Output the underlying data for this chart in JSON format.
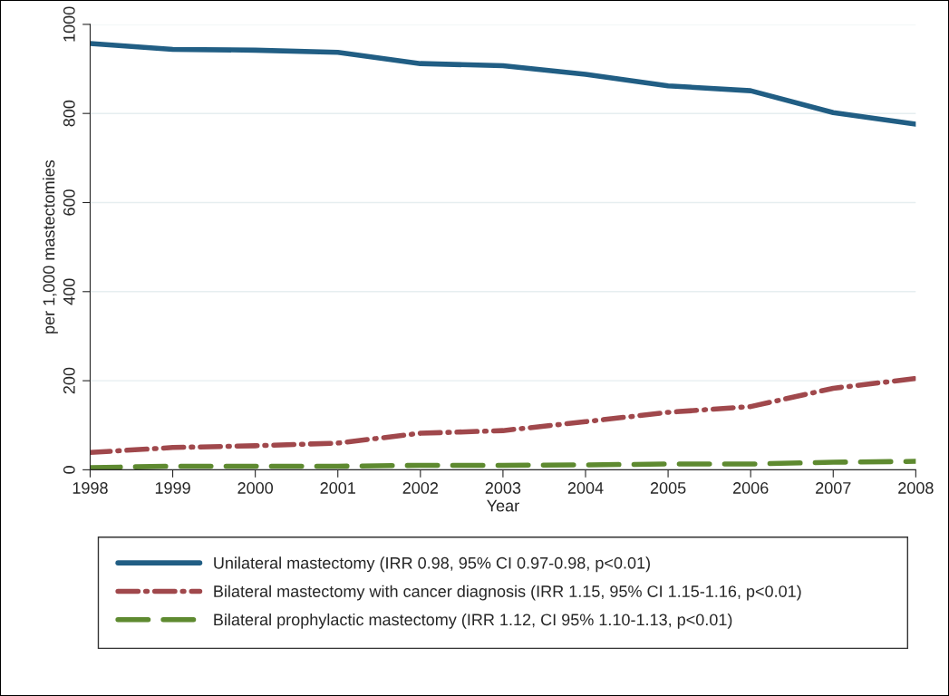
{
  "chart_data": {
    "type": "line",
    "xlabel": "Year",
    "ylabel": "per 1,000 mastectomies",
    "x": [
      1998,
      1999,
      2000,
      2001,
      2002,
      2003,
      2004,
      2005,
      2006,
      2007,
      2008
    ],
    "xlim": [
      1998,
      2008
    ],
    "xticks": [
      1998,
      1999,
      2000,
      2001,
      2002,
      2003,
      2004,
      2005,
      2006,
      2007,
      2008
    ],
    "ylim": [
      0,
      1000
    ],
    "yticks": [
      0,
      200,
      400,
      600,
      800,
      1000
    ],
    "grid": "y",
    "legend": "bottom",
    "series": [
      {
        "name": "Unilateral mastectomy (IRR 0.98, 95% CI 0.97-0.98, p<0.01)",
        "color": "#215e84",
        "line_style": "solid",
        "values": [
          957,
          944,
          942,
          937,
          912,
          907,
          888,
          862,
          851,
          802,
          776
        ]
      },
      {
        "name": "Bilateral mastectomy with cancer diagnosis (IRR 1.15, 95% CI 1.15-1.16, p<0.01)",
        "color": "#a0484c",
        "line_style": "dashdot",
        "values": [
          39,
          50,
          54,
          60,
          82,
          88,
          108,
          129,
          142,
          183,
          205
        ]
      },
      {
        "name": "Bilateral prophylactic mastectomy (IRR 1.12, CI 95% 1.10-1.13, p<0.01)",
        "color": "#5e8a30",
        "line_style": "dashed",
        "values": [
          5,
          8,
          8,
          8,
          10,
          10,
          11,
          13,
          13,
          17,
          19
        ]
      }
    ]
  }
}
